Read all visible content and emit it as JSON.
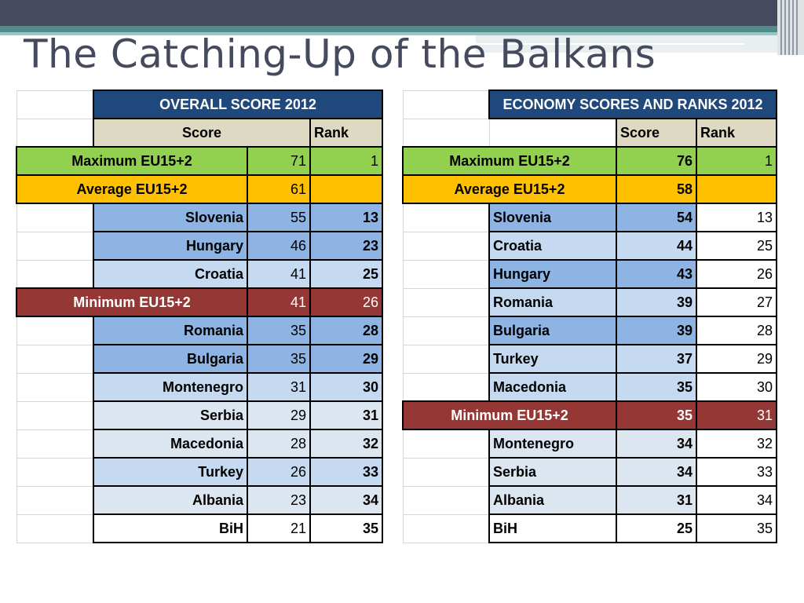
{
  "slide": {
    "title": "The Catching-Up of the Balkans"
  },
  "overall": {
    "header": "OVERALL SCORE 2012",
    "col_score": "Score",
    "col_rank": "Rank",
    "rows": [
      {
        "name": "Maximum EU15+2",
        "score": "71",
        "rank": "1",
        "style": "green"
      },
      {
        "name": "Average EU15+2",
        "score": "61",
        "rank": "",
        "style": "orange"
      },
      {
        "name": "Slovenia",
        "score": "55",
        "rank": "13",
        "style": "b1"
      },
      {
        "name": "Hungary",
        "score": "46",
        "rank": "23",
        "style": "b1"
      },
      {
        "name": "Croatia",
        "score": "41",
        "rank": "25",
        "style": "b2"
      },
      {
        "name": "Minimum EU15+2",
        "score": "41",
        "rank": "26",
        "style": "red"
      },
      {
        "name": "Romania",
        "score": "35",
        "rank": "28",
        "style": "b1"
      },
      {
        "name": "Bulgaria",
        "score": "35",
        "rank": "29",
        "style": "b1"
      },
      {
        "name": "Montenegro",
        "score": "31",
        "rank": "30",
        "style": "b2"
      },
      {
        "name": "Serbia",
        "score": "29",
        "rank": "31",
        "style": "b3"
      },
      {
        "name": "Macedonia",
        "score": "28",
        "rank": "32",
        "style": "b3"
      },
      {
        "name": "Turkey",
        "score": "26",
        "rank": "33",
        "style": "b2"
      },
      {
        "name": "Albania",
        "score": "23",
        "rank": "34",
        "style": "b3"
      },
      {
        "name": "BiH",
        "score": "21",
        "rank": "35",
        "style": "w"
      }
    ]
  },
  "economy": {
    "header": "ECONOMY SCORES AND RANKS 2012",
    "col_score": "Score",
    "col_rank": "Rank",
    "rows": [
      {
        "name": "Maximum EU15+2",
        "score": "76",
        "rank": "1",
        "style": "green"
      },
      {
        "name": "Average EU15+2",
        "score": "58",
        "rank": "",
        "style": "orange"
      },
      {
        "name": "Slovenia",
        "score": "54",
        "rank": "13",
        "style": "b1"
      },
      {
        "name": "Croatia",
        "score": "44",
        "rank": "25",
        "style": "b2"
      },
      {
        "name": "Hungary",
        "score": "43",
        "rank": "26",
        "style": "b1"
      },
      {
        "name": "Romania",
        "score": "39",
        "rank": "27",
        "style": "b2"
      },
      {
        "name": "Bulgaria",
        "score": "39",
        "rank": "28",
        "style": "b1"
      },
      {
        "name": "Turkey",
        "score": "37",
        "rank": "29",
        "style": "b2"
      },
      {
        "name": "Macedonia",
        "score": "35",
        "rank": "30",
        "style": "b2"
      },
      {
        "name": "Minimum EU15+2",
        "score": "35",
        "rank": "31",
        "style": "red"
      },
      {
        "name": "Montenegro",
        "score": "34",
        "rank": "32",
        "style": "b3"
      },
      {
        "name": "Serbia",
        "score": "34",
        "rank": "33",
        "style": "b3"
      },
      {
        "name": "Albania",
        "score": "31",
        "rank": "34",
        "style": "b3"
      },
      {
        "name": "BiH",
        "score": "25",
        "rank": "35",
        "style": "w"
      }
    ]
  },
  "colors": {
    "title": "#454a5e",
    "header_blue": "#1f497d",
    "header_tan": "#ddd9c3",
    "maximum_green": "#92d050",
    "average_orange": "#ffc000",
    "minimum_red": "#953735",
    "blue_dark": "#8db4e2",
    "blue_mid": "#c5d9f1",
    "blue_light": "#dce6f1"
  }
}
